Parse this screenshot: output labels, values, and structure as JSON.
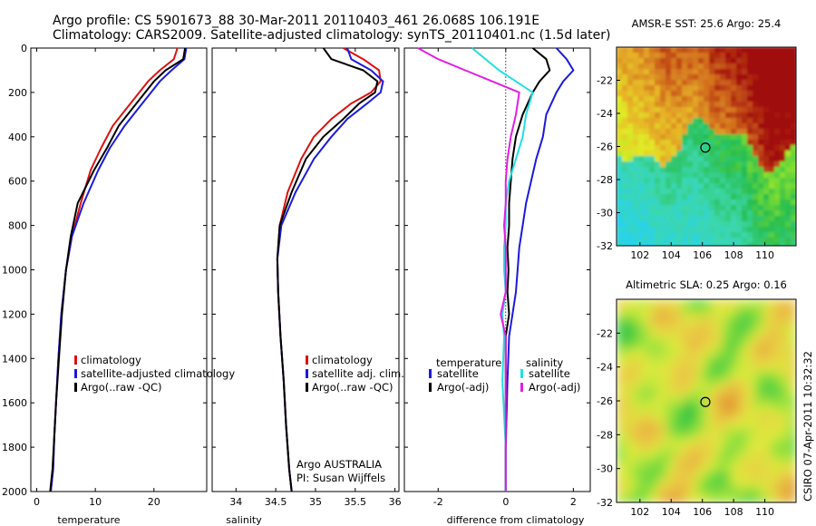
{
  "header": {
    "line1": "Argo profile: CS 5901673_88 30-Mar-2011 20110403_461 26.068S 106.191E",
    "line2": "Climatology: CARS2009. Satellite-adjusted climatology: synTS_20110401.nc (1.5d later)"
  },
  "side_stamp": "CSIRO 07-Apr-2011 10:32:32",
  "credit": {
    "line1": "Argo AUSTRALIA",
    "line2": "PI: Susan Wijffels"
  },
  "colors": {
    "climatology": "#dd1111",
    "satellite": "#1a1adc",
    "argo": "#000000",
    "salinity_satellite": "#22e0e0",
    "salinity_argo": "#e020e0"
  },
  "chart_data": [
    {
      "type": "line",
      "name": "temperature-profile",
      "xlabel": "temperature",
      "ylabel": "",
      "xlim": [
        -1,
        29
      ],
      "ylim": [
        2000,
        0
      ],
      "xticks": [
        0,
        10,
        20
      ],
      "yticks": [
        0,
        200,
        400,
        600,
        800,
        1000,
        1200,
        1400,
        1600,
        1800,
        2000
      ],
      "legend": [
        "climatology",
        "satellite-adjusted climatology",
        "Argo(..raw -QC)"
      ],
      "legend_position": "bottom-right",
      "series": [
        {
          "key": "climatology",
          "color": "#dd1111",
          "x": [
            24.0,
            23.4,
            21.0,
            19.0,
            16.0,
            13.0,
            11.0,
            9.2,
            7.5,
            6.0,
            5.0,
            4.2,
            3.7,
            3.3,
            3.0,
            2.8,
            2.6,
            2.4
          ],
          "y": [
            0,
            50,
            100,
            150,
            250,
            350,
            450,
            550,
            700,
            850,
            1000,
            1200,
            1400,
            1600,
            1750,
            1900,
            1950,
            2000
          ]
        },
        {
          "key": "satellite",
          "color": "#1a1adc",
          "x": [
            25.5,
            25.2,
            23.0,
            21.0,
            18.0,
            15.0,
            12.5,
            10.5,
            8.0,
            6.0,
            5.0,
            4.2,
            3.7,
            3.3,
            3.0,
            2.8,
            2.6,
            2.4
          ],
          "y": [
            0,
            50,
            100,
            150,
            250,
            350,
            450,
            550,
            700,
            850,
            1000,
            1200,
            1400,
            1600,
            1750,
            1900,
            1950,
            2000
          ]
        },
        {
          "key": "argo",
          "color": "#000000",
          "x": [
            25.3,
            25.0,
            22.0,
            20.0,
            17.0,
            14.0,
            12.0,
            9.8,
            7.0,
            5.8,
            5.0,
            4.3,
            3.8,
            3.3,
            3.0,
            2.7,
            2.5,
            2.3
          ],
          "y": [
            0,
            50,
            100,
            150,
            250,
            350,
            450,
            550,
            700,
            850,
            1000,
            1200,
            1400,
            1600,
            1750,
            1900,
            1950,
            2000
          ]
        }
      ]
    },
    {
      "type": "line",
      "name": "salinity-profile",
      "xlabel": "salinity",
      "ylabel": "",
      "xlim": [
        33.7,
        36.05
      ],
      "ylim": [
        2000,
        0
      ],
      "xticks": [
        34,
        34.5,
        35,
        35.5,
        36
      ],
      "legend": [
        "climatology",
        "satellite adj. clim.",
        "Argo(..raw -QC)"
      ],
      "legend_position": "bottom-right",
      "series": [
        {
          "key": "climatology",
          "color": "#dd1111",
          "x": [
            35.35,
            35.6,
            35.8,
            35.82,
            35.7,
            35.45,
            35.2,
            34.98,
            34.82,
            34.65,
            34.55,
            34.52,
            34.53,
            34.56,
            34.6,
            34.63,
            34.67,
            34.7
          ],
          "y": [
            0,
            50,
            100,
            150,
            200,
            250,
            320,
            400,
            500,
            650,
            800,
            950,
            1100,
            1300,
            1500,
            1700,
            1900,
            2000
          ]
        },
        {
          "key": "satellite",
          "color": "#1a1adc",
          "x": [
            35.4,
            35.45,
            35.7,
            35.85,
            35.82,
            35.65,
            35.4,
            35.2,
            34.98,
            34.75,
            34.57,
            34.52,
            34.53,
            34.56,
            34.6,
            34.63,
            34.67,
            34.7
          ],
          "y": [
            0,
            50,
            100,
            150,
            200,
            250,
            320,
            400,
            500,
            650,
            800,
            950,
            1100,
            1300,
            1500,
            1700,
            1900,
            2000
          ]
        },
        {
          "key": "argo",
          "color": "#000000",
          "x": [
            35.1,
            35.2,
            35.6,
            35.78,
            35.75,
            35.55,
            35.35,
            35.1,
            34.88,
            34.7,
            34.55,
            34.52,
            34.53,
            34.56,
            34.6,
            34.63,
            34.67,
            34.7
          ],
          "y": [
            0,
            50,
            100,
            150,
            200,
            250,
            320,
            400,
            500,
            650,
            800,
            950,
            1100,
            1300,
            1500,
            1700,
            1900,
            2000
          ]
        }
      ]
    },
    {
      "type": "line",
      "name": "difference-profile",
      "xlabel": "difference from climatology",
      "ylabel": "",
      "xlim": [
        -3,
        2.5
      ],
      "ylim": [
        2000,
        0
      ],
      "xticks": [
        -2,
        0,
        2
      ],
      "zero_line": true,
      "legend_groups": [
        {
          "title": "temperature",
          "items": [
            "satellite",
            "Argo(-adj)"
          ]
        },
        {
          "title": "salinity",
          "items": [
            "satellite",
            "Argo(-adj)"
          ]
        }
      ],
      "legend_position": "bottom",
      "series": [
        {
          "key": "temperature-satellite",
          "color": "#1a1adc",
          "x": [
            1.5,
            1.8,
            2.0,
            1.7,
            1.5,
            1.2,
            1.1,
            0.9,
            0.75,
            0.6,
            0.5,
            0.4,
            0.35,
            0.3,
            0.2,
            0.1,
            0.05,
            0.0,
            0.0
          ],
          "y": [
            0,
            50,
            100,
            150,
            200,
            300,
            400,
            500,
            600,
            700,
            800,
            900,
            1000,
            1100,
            1200,
            1300,
            1500,
            1800,
            2000
          ]
        },
        {
          "key": "temperature-argo",
          "color": "#000000",
          "x": [
            0.8,
            1.2,
            1.3,
            1.0,
            0.8,
            0.5,
            0.3,
            0.2,
            0.15,
            0.1,
            0.1,
            0.05,
            0.08,
            0.05,
            0.1,
            0.0,
            0.0,
            0.0,
            0.0
          ],
          "y": [
            0,
            50,
            100,
            150,
            200,
            300,
            400,
            500,
            600,
            700,
            800,
            900,
            1000,
            1100,
            1200,
            1300,
            1500,
            1800,
            2000
          ]
        },
        {
          "key": "salinity-satellite",
          "color": "#22e0e0",
          "x": [
            -1.0,
            -0.6,
            -0.2,
            0.3,
            0.8,
            0.6,
            0.5,
            0.3,
            0.1,
            0.0,
            0.0,
            -0.05,
            -0.05,
            0.0,
            -0.1,
            -0.05,
            -0.1,
            0.0,
            0.0
          ],
          "y": [
            0,
            50,
            100,
            150,
            200,
            300,
            400,
            500,
            600,
            700,
            800,
            900,
            1000,
            1100,
            1200,
            1300,
            1500,
            1800,
            2000
          ]
        },
        {
          "key": "salinity-argo",
          "color": "#e020e0",
          "x": [
            -2.6,
            -2.0,
            -1.2,
            -0.4,
            0.4,
            0.3,
            0.15,
            0.05,
            0.0,
            0.0,
            -0.05,
            0.0,
            0.0,
            0.0,
            -0.15,
            0.0,
            0.0,
            0.0,
            0.0
          ],
          "y": [
            0,
            50,
            100,
            150,
            200,
            300,
            400,
            500,
            600,
            700,
            800,
            900,
            1000,
            1100,
            1200,
            1300,
            1500,
            1800,
            2000
          ]
        }
      ]
    },
    {
      "type": "heatmap",
      "name": "sst-map",
      "title": "AMSR-E SST: 25.6  Argo: 25.4",
      "xlim": [
        100.5,
        112
      ],
      "ylim": [
        -32,
        -20
      ],
      "xticks": [
        102,
        104,
        106,
        108,
        110
      ],
      "yticks": [
        -22,
        -24,
        -26,
        -28,
        -30,
        -32
      ],
      "marker": {
        "lon": 106.191,
        "lat": -26.068
      }
    },
    {
      "type": "heatmap",
      "name": "sla-map",
      "title": "Altimetric SLA: 0.25  Argo: 0.16",
      "xlim": [
        100.5,
        112
      ],
      "ylim": [
        -32,
        -20
      ],
      "xticks": [
        102,
        104,
        106,
        108,
        110
      ],
      "yticks": [
        -22,
        -24,
        -26,
        -28,
        -30,
        -32
      ],
      "marker": {
        "lon": 106.191,
        "lat": -26.068
      }
    }
  ]
}
